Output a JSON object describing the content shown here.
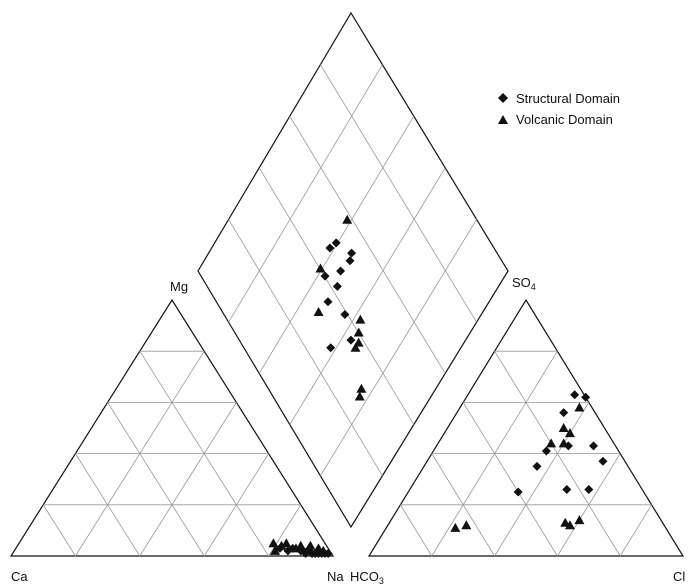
{
  "chart_data": {
    "type": "scatter",
    "diagram": "piper",
    "grid_step": 20,
    "grid": true,
    "legend_position": "top-right",
    "labels": {
      "mg": "Mg",
      "ca": "Ca",
      "na": "Na",
      "hco3_main": "HCO",
      "hco3_sub": "3",
      "so4_main": "SO",
      "so4_sub": "4",
      "cl": "Cl"
    },
    "series": [
      {
        "name": "Structural Domain",
        "marker": "diamond",
        "cation_points": [
          {
            "ca": 15,
            "mg": 3
          },
          {
            "ca": 13,
            "mg": 2
          },
          {
            "ca": 11,
            "mg": 3
          },
          {
            "ca": 9,
            "mg": 2
          },
          {
            "ca": 8,
            "mg": 1
          },
          {
            "ca": 7,
            "mg": 2
          },
          {
            "ca": 6,
            "mg": 1
          },
          {
            "ca": 5,
            "mg": 1
          },
          {
            "ca": 4,
            "mg": 1
          },
          {
            "ca": 3,
            "mg": 1
          },
          {
            "ca": 2,
            "mg": 1
          },
          {
            "ca": 1,
            "mg": 1
          }
        ],
        "anion_points": [
          {
            "cl": 38,
            "so4": 62
          },
          {
            "cl": 34,
            "so4": 63
          },
          {
            "cl": 34,
            "so4": 56
          },
          {
            "cl": 50,
            "so4": 43
          },
          {
            "cl": 56,
            "so4": 37
          },
          {
            "cl": 42,
            "so4": 43
          },
          {
            "cl": 36,
            "so4": 41
          },
          {
            "cl": 36,
            "so4": 35
          },
          {
            "cl": 35,
            "so4": 25
          },
          {
            "cl": 50,
            "so4": 26
          },
          {
            "cl": 57,
            "so4": 26
          }
        ],
        "diamond_points": [
          {
            "x": 40,
            "y": 58
          },
          {
            "x": 46,
            "y": 54
          },
          {
            "x": 51,
            "y": 53
          },
          {
            "x": 53,
            "y": 54
          },
          {
            "x": 36,
            "y": 52
          },
          {
            "x": 42,
            "y": 52
          },
          {
            "x": 28,
            "y": 42
          },
          {
            "x": 39,
            "y": 44
          },
          {
            "x": 36,
            "y": 37
          },
          {
            "x": 47,
            "y": 62
          },
          {
            "x": 50,
            "y": 61
          }
        ]
      },
      {
        "name": "Volcanic Domain",
        "marker": "triangle",
        "cation_points": [
          {
            "ca": 16,
            "mg": 5
          },
          {
            "ca": 14,
            "mg": 4
          },
          {
            "ca": 12,
            "mg": 5
          },
          {
            "ca": 10,
            "mg": 3
          },
          {
            "ca": 8,
            "mg": 4
          },
          {
            "ca": 6,
            "mg": 3
          },
          {
            "ca": 5,
            "mg": 4
          },
          {
            "ca": 4,
            "mg": 2
          },
          {
            "ca": 3,
            "mg": 3
          },
          {
            "ca": 2,
            "mg": 2
          },
          {
            "ca": 17,
            "mg": 2
          }
        ],
        "anion_points": [
          {
            "cl": 38,
            "so4": 58
          },
          {
            "cl": 37,
            "so4": 50
          },
          {
            "cl": 40,
            "so4": 48
          },
          {
            "cl": 40,
            "so4": 44
          },
          {
            "cl": 36,
            "so4": 44
          },
          {
            "cl": 25,
            "so4": 12
          },
          {
            "cl": 22,
            "so4": 11
          },
          {
            "cl": 60,
            "so4": 14
          },
          {
            "cl": 56,
            "so4": 13
          },
          {
            "cl": 58,
            "so4": 12
          }
        ],
        "diamond_points": [
          {
            "x": 30,
            "y": 24
          },
          {
            "x": 28,
            "y": 23
          },
          {
            "x": 36,
            "y": 34
          },
          {
            "x": 38,
            "y": 34
          },
          {
            "x": 40,
            "y": 36
          },
          {
            "x": 43,
            "y": 38
          },
          {
            "x": 40,
            "y": 61
          },
          {
            "x": 58,
            "y": 62
          },
          {
            "x": 31,
            "y": 53
          }
        ]
      }
    ]
  }
}
